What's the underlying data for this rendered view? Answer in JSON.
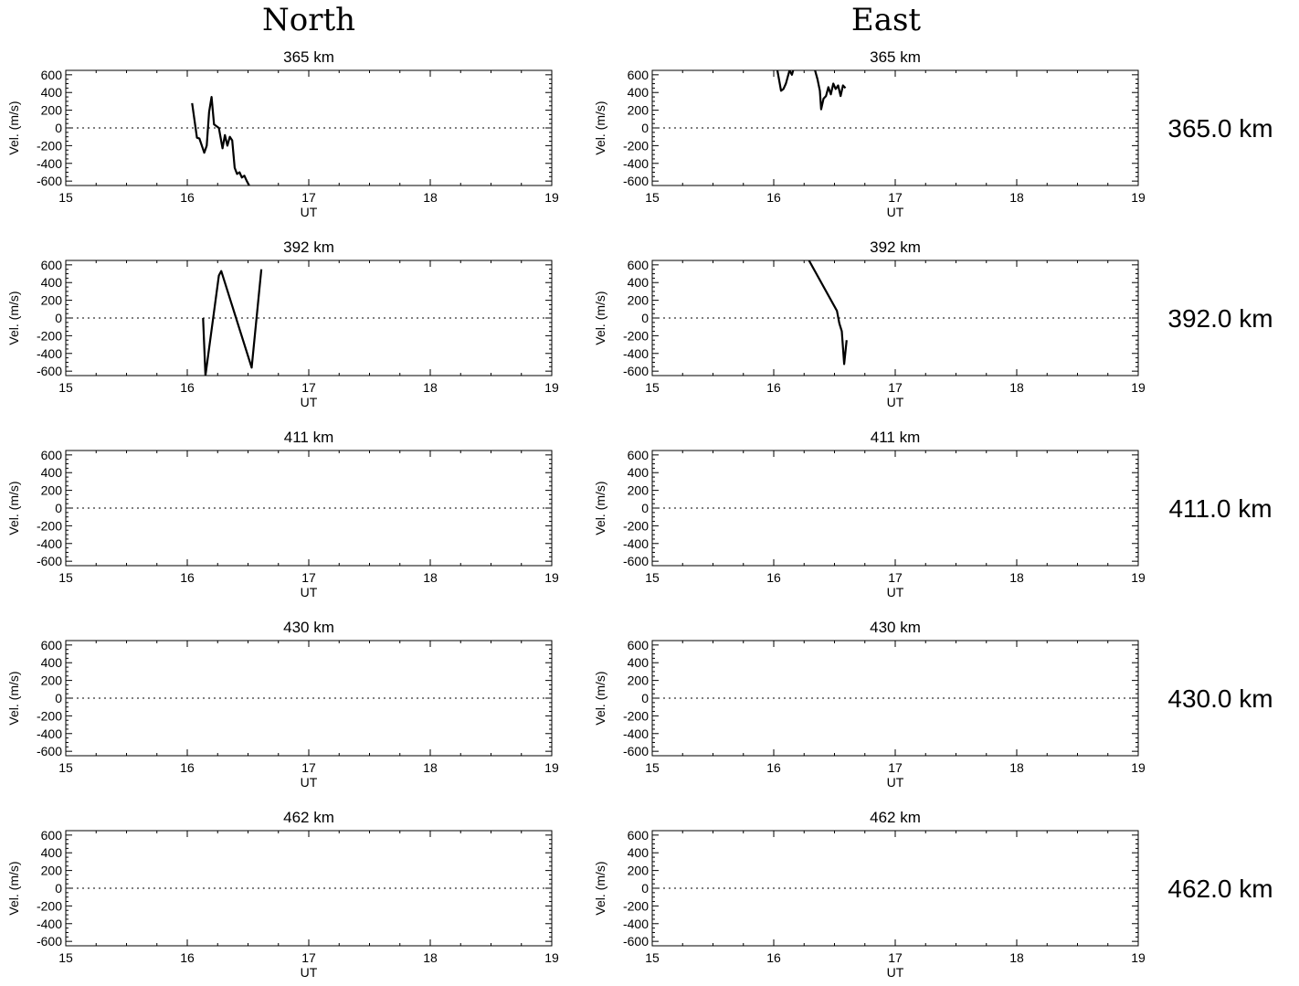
{
  "columns": [
    "North",
    "East"
  ],
  "chart_data": [
    {
      "type": "line",
      "column": "North",
      "title": "365 km",
      "xlabel": "UT",
      "ylabel": "Vel. (m/s)",
      "xlim": [
        15,
        19
      ],
      "ylim": [
        -650,
        650
      ],
      "xticks": [
        "15",
        "16",
        "17",
        "18",
        "19"
      ],
      "yticks": [
        "600",
        "400",
        "200",
        "0",
        "-200",
        "-400",
        "-600"
      ],
      "series": [
        {
          "x": [
            16.04,
            16.08,
            16.1,
            16.14,
            16.16,
            16.18,
            16.2,
            16.22,
            16.26,
            16.29,
            16.31,
            16.33,
            16.35,
            16.37,
            16.39,
            16.41,
            16.43,
            16.45,
            16.47,
            16.49,
            16.51
          ],
          "y": [
            280,
            -110,
            -120,
            -280,
            -200,
            180,
            350,
            40,
            0,
            -230,
            -80,
            -200,
            -100,
            -140,
            -450,
            -520,
            -500,
            -560,
            -540,
            -600,
            -650
          ]
        }
      ]
    },
    {
      "type": "line",
      "column": "East",
      "title": "365 km",
      "xlabel": "UT",
      "ylabel": "Vel. (m/s)",
      "xlim": [
        15,
        19
      ],
      "ylim": [
        -650,
        650
      ],
      "xticks": [
        "15",
        "16",
        "17",
        "18",
        "19"
      ],
      "yticks": [
        "600",
        "400",
        "200",
        "0",
        "-200",
        "-400",
        "-600"
      ],
      "series": [
        {
          "x": [
            16.03,
            16.06,
            16.08,
            16.1,
            16.13,
            16.15,
            16.16
          ],
          "y": [
            650,
            420,
            440,
            500,
            650,
            600,
            650
          ]
        },
        {
          "x": [
            16.34,
            16.36,
            16.38,
            16.39,
            16.41,
            16.43,
            16.45,
            16.47,
            16.49,
            16.51,
            16.53,
            16.55,
            16.57,
            16.59
          ],
          "y": [
            650,
            550,
            420,
            210,
            330,
            360,
            460,
            380,
            500,
            440,
            480,
            360,
            480,
            450
          ]
        }
      ]
    },
    {
      "type": "line",
      "column": "North",
      "title": "392 km",
      "xlabel": "UT",
      "ylabel": "Vel. (m/s)",
      "xlim": [
        15,
        19
      ],
      "ylim": [
        -650,
        650
      ],
      "xticks": [
        "15",
        "16",
        "17",
        "18",
        "19"
      ],
      "yticks": [
        "600",
        "400",
        "200",
        "0",
        "-200",
        "-400",
        "-600"
      ],
      "series": [
        {
          "x": [
            16.13,
            16.15,
            16.26,
            16.28,
            16.53,
            16.61
          ],
          "y": [
            0,
            -650,
            480,
            530,
            -560,
            550
          ]
        }
      ]
    },
    {
      "type": "line",
      "column": "East",
      "title": "392 km",
      "xlabel": "UT",
      "ylabel": "Vel. (m/s)",
      "xlim": [
        15,
        19
      ],
      "ylim": [
        -650,
        650
      ],
      "xticks": [
        "15",
        "16",
        "17",
        "18",
        "19"
      ],
      "yticks": [
        "600",
        "400",
        "200",
        "0",
        "-200",
        "-400",
        "-600"
      ],
      "series": [
        {
          "x": [
            16.29,
            16.52,
            16.54,
            16.56,
            16.58,
            16.6
          ],
          "y": [
            650,
            80,
            -60,
            -150,
            -520,
            -250
          ]
        }
      ]
    },
    {
      "type": "line",
      "column": "North",
      "title": "411 km",
      "xlabel": "UT",
      "ylabel": "Vel. (m/s)",
      "xlim": [
        15,
        19
      ],
      "ylim": [
        -650,
        650
      ],
      "xticks": [
        "15",
        "16",
        "17",
        "18",
        "19"
      ],
      "yticks": [
        "600",
        "400",
        "200",
        "0",
        "-200",
        "-400",
        "-600"
      ],
      "series": []
    },
    {
      "type": "line",
      "column": "East",
      "title": "411 km",
      "xlabel": "UT",
      "ylabel": "Vel. (m/s)",
      "xlim": [
        15,
        19
      ],
      "ylim": [
        -650,
        650
      ],
      "xticks": [
        "15",
        "16",
        "17",
        "18",
        "19"
      ],
      "yticks": [
        "600",
        "400",
        "200",
        "0",
        "-200",
        "-400",
        "-600"
      ],
      "series": []
    },
    {
      "type": "line",
      "column": "North",
      "title": "430 km",
      "xlabel": "UT",
      "ylabel": "Vel. (m/s)",
      "xlim": [
        15,
        19
      ],
      "ylim": [
        -650,
        650
      ],
      "xticks": [
        "15",
        "16",
        "17",
        "18",
        "19"
      ],
      "yticks": [
        "600",
        "400",
        "200",
        "0",
        "-200",
        "-400",
        "-600"
      ],
      "series": []
    },
    {
      "type": "line",
      "column": "East",
      "title": "430 km",
      "xlabel": "UT",
      "ylabel": "Vel. (m/s)",
      "xlim": [
        15,
        19
      ],
      "ylim": [
        -650,
        650
      ],
      "xticks": [
        "15",
        "16",
        "17",
        "18",
        "19"
      ],
      "yticks": [
        "600",
        "400",
        "200",
        "0",
        "-200",
        "-400",
        "-600"
      ],
      "series": []
    },
    {
      "type": "line",
      "column": "North",
      "title": "462 km",
      "xlabel": "UT",
      "ylabel": "Vel. (m/s)",
      "xlim": [
        15,
        19
      ],
      "ylim": [
        -650,
        650
      ],
      "xticks": [
        "15",
        "16",
        "17",
        "18",
        "19"
      ],
      "yticks": [
        "600",
        "400",
        "200",
        "0",
        "-200",
        "-400",
        "-600"
      ],
      "series": []
    },
    {
      "type": "line",
      "column": "East",
      "title": "462 km",
      "xlabel": "UT",
      "ylabel": "Vel. (m/s)",
      "xlim": [
        15,
        19
      ],
      "ylim": [
        -650,
        650
      ],
      "xticks": [
        "15",
        "16",
        "17",
        "18",
        "19"
      ],
      "yticks": [
        "600",
        "400",
        "200",
        "0",
        "-200",
        "-400",
        "-600"
      ],
      "series": []
    }
  ],
  "row_labels": [
    "365.0 km",
    "392.0 km",
    "411.0 km",
    "430.0 km",
    "462.0 km"
  ]
}
